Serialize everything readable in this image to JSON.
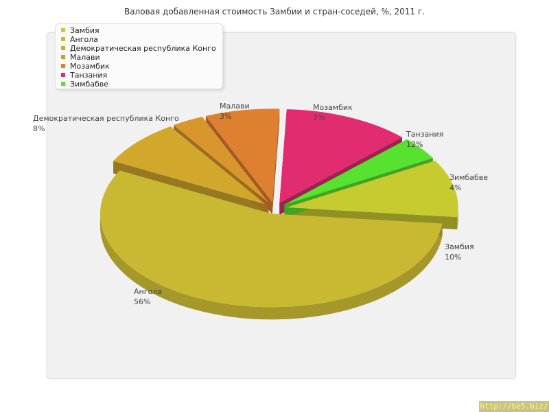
{
  "chart_data": {
    "type": "pie",
    "title": "Валовая добавленная стоимость Замбии и стран-соседей, %, 2011 г.",
    "series": [
      {
        "name": "Замбия",
        "value": 10,
        "label": "10%",
        "color": "#c6cb30"
      },
      {
        "name": "Ангола",
        "value": 56,
        "label": "56%",
        "color": "#c9b832"
      },
      {
        "name": "Демократическая республика Конго",
        "value": 8,
        "label": "8%",
        "color": "#d1a72c"
      },
      {
        "name": "Малави",
        "value": 3,
        "label": "3%",
        "color": "#d9962c"
      },
      {
        "name": "Мозамбик",
        "value": 7,
        "label": "7%",
        "color": "#de8030"
      },
      {
        "name": "Танзания",
        "value": 12,
        "label": "12%",
        "color": "#e12d70"
      },
      {
        "name": "Зимбабве",
        "value": 4,
        "label": "4%",
        "color": "#57e230"
      }
    ],
    "legend_placement": "top-left",
    "style": "3d-exploded"
  },
  "watermark": "http://be5.biz/"
}
